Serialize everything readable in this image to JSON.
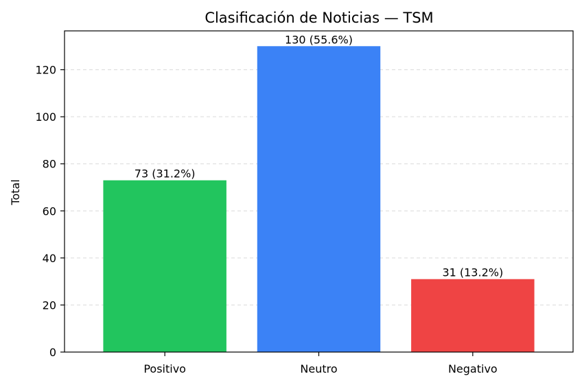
{
  "chart_data": {
    "type": "bar",
    "title": "Clasificación de Noticias — TSM",
    "xlabel": "",
    "ylabel": "Total",
    "categories": [
      "Positivo",
      "Neutro",
      "Negativo"
    ],
    "values": [
      73,
      130,
      31
    ],
    "data_labels": [
      "73 (31.2%)",
      "130 (55.6%)",
      "31 (13.2%)"
    ],
    "colors": [
      "#22c55e",
      "#3b82f6",
      "#ef4444"
    ],
    "ylim": [
      0,
      136.5
    ],
    "yticks": [
      0,
      20,
      40,
      60,
      80,
      100,
      120
    ],
    "grid": true
  }
}
